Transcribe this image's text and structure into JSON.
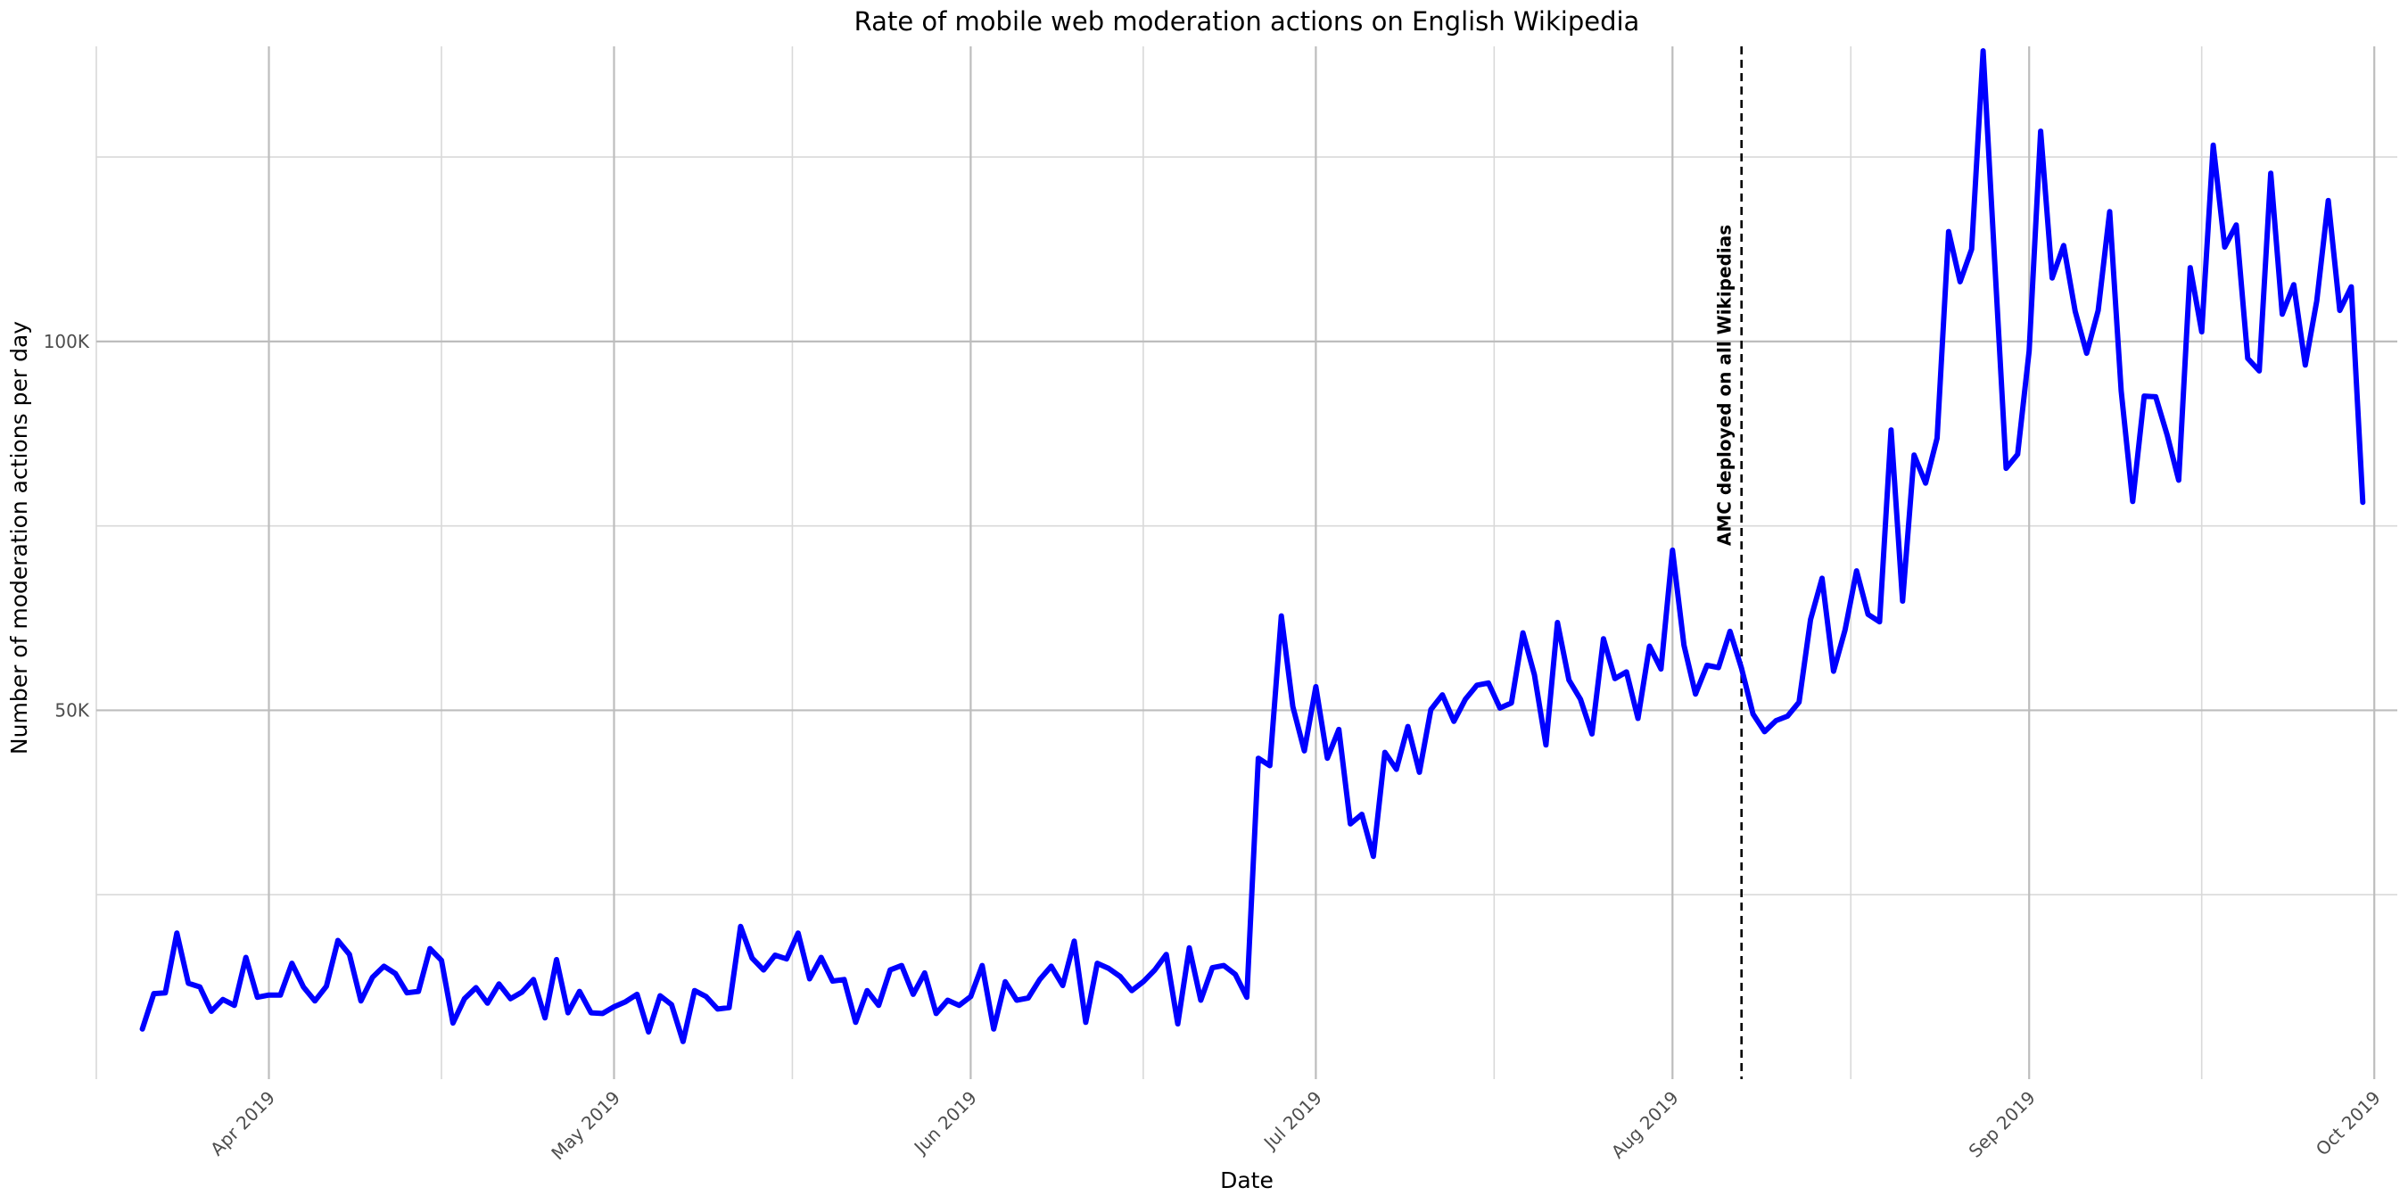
{
  "chart_data": {
    "type": "line",
    "title": "Rate of mobile web moderation actions on English Wikipedia",
    "xlabel": "Date",
    "ylabel": "Number of moderation actions per day",
    "x_range": [
      "2019-03-17",
      "2019-10-03"
    ],
    "ylim": [
      0,
      140000
    ],
    "y_ticks": [
      {
        "value": 50000,
        "label": "50K"
      },
      {
        "value": 100000,
        "label": "100K"
      }
    ],
    "x_ticks": [
      {
        "date": "2019-04-01",
        "label": "Apr 2019"
      },
      {
        "date": "2019-05-01",
        "label": "May 2019"
      },
      {
        "date": "2019-06-01",
        "label": "Jun 2019"
      },
      {
        "date": "2019-07-01",
        "label": "Jul 2019"
      },
      {
        "date": "2019-08-01",
        "label": "Aug 2019"
      },
      {
        "date": "2019-09-01",
        "label": "Sep 2019"
      },
      {
        "date": "2019-10-01",
        "label": "Oct 2019"
      }
    ],
    "grid": true,
    "legend": "none",
    "series_color": "#0000ff",
    "annotation": {
      "date": "2019-08-07",
      "label": "AMC deployed on all Wikipedias",
      "style": "dashed",
      "color": "#000000"
    },
    "series": [
      {
        "start_date": "2019-03-21",
        "values": [
          6800,
          11600,
          11700,
          19800,
          13000,
          12500,
          9200,
          10800,
          10000,
          16500,
          11100,
          11400,
          11400,
          15700,
          12500,
          10600,
          12600,
          18800,
          16900,
          10600,
          13800,
          15300,
          14300,
          11700,
          11900,
          17700,
          16100,
          7600,
          10900,
          12400,
          10300,
          12900,
          10900,
          11800,
          13500,
          8300,
          16200,
          9000,
          11900,
          9000,
          8900,
          9800,
          10500,
          11500,
          6400,
          11300,
          10100,
          5100,
          12000,
          11200,
          9500,
          9700,
          20700,
          16400,
          14800,
          16800,
          16300,
          19800,
          13600,
          16500,
          13300,
          13500,
          7700,
          12000,
          10000,
          14800,
          15400,
          11500,
          14400,
          8900,
          10700,
          10000,
          11200,
          15400,
          6800,
          13200,
          10700,
          11000,
          13500,
          15300,
          12700,
          18700,
          7700,
          15700,
          15000,
          13900,
          12000,
          13200,
          14800,
          16900,
          7500,
          17800,
          10700,
          15100,
          15400,
          14200,
          11100,
          43500,
          42500,
          62800,
          50500,
          44500,
          53200,
          43500,
          47400,
          34600,
          35900,
          30200,
          44300,
          42000,
          47800,
          41600,
          50100,
          52100,
          48500,
          51500,
          53400,
          53700,
          50300,
          51000,
          60500,
          54800,
          45300,
          61900,
          54100,
          51500,
          46800,
          59700,
          54300,
          55200,
          48900,
          58700,
          55600,
          71700,
          58800,
          52200,
          56100,
          55800,
          60700,
          55700,
          49500,
          47100,
          48600,
          49200,
          51100,
          62300,
          67900,
          55300,
          60900,
          68900,
          63000,
          62000,
          88000,
          64800,
          84600,
          80800,
          86900,
          114900,
          108100,
          112500,
          139400,
          111000,
          82800,
          84700,
          98700,
          128500,
          108600,
          113000,
          104100,
          98400,
          104200,
          117600,
          93300,
          78300,
          92600,
          92500,
          87300,
          81200,
          110000,
          101300,
          126600,
          112800,
          115800,
          97700,
          96000,
          122800,
          103700,
          107700,
          96800,
          105500,
          119100,
          104200,
          107400,
          78200
        ]
      }
    ]
  }
}
